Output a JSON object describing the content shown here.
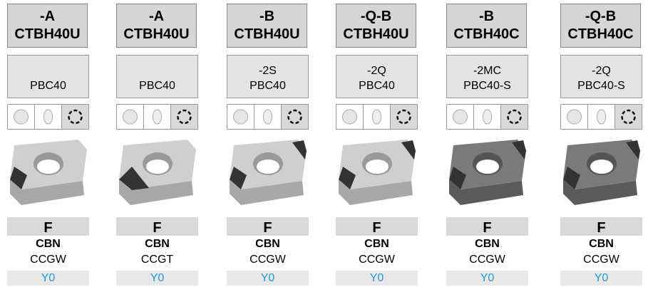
{
  "columns": [
    {
      "grade": "-A",
      "holder": "CTBH40U",
      "chipbreaker": [
        "PBC40"
      ],
      "class": "F",
      "material": "CBN",
      "insert": "CCGW",
      "code": "Y0"
    },
    {
      "grade": "-A",
      "holder": "CTBH40U",
      "chipbreaker": [
        "PBC40"
      ],
      "class": "F",
      "material": "CBN",
      "insert": "CCGT",
      "code": "Y0"
    },
    {
      "grade": "-B",
      "holder": "CTBH40U",
      "chipbreaker": [
        "-2S",
        "PBC40"
      ],
      "class": "F",
      "material": "CBN",
      "insert": "CCGW",
      "code": "Y0"
    },
    {
      "grade": "-Q-B",
      "holder": "CTBH40U",
      "chipbreaker": [
        "-2Q",
        "PBC40"
      ],
      "class": "F",
      "material": "CBN",
      "insert": "CCGW",
      "code": "Y0"
    },
    {
      "grade": "-B",
      "holder": "CTBH40C",
      "chipbreaker": [
        "-2MC",
        "PBC40-S"
      ],
      "class": "F",
      "material": "CBN",
      "insert": "CCGW",
      "code": "Y0"
    },
    {
      "grade": "-Q-B",
      "holder": "CTBH40C",
      "chipbreaker": [
        "-2Q",
        "PBC40-S"
      ],
      "class": "F",
      "material": "CBN",
      "insert": "CCGW",
      "code": "Y0"
    }
  ]
}
